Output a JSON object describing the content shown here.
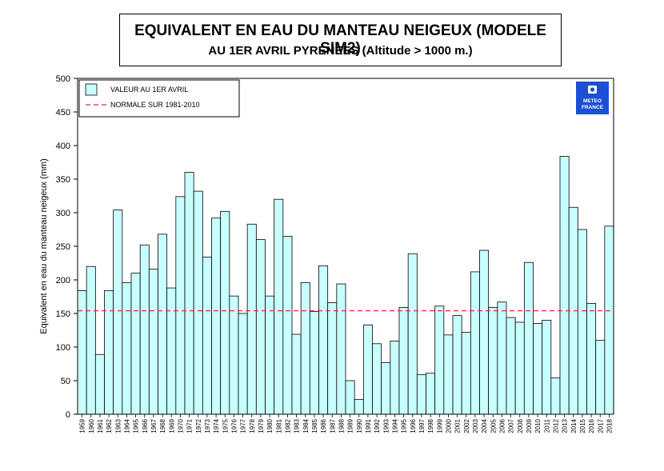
{
  "header": {
    "title": "EQUIVALENT EN EAU DU MANTEAU NEIGEUX (MODELE SIM2)",
    "subtitle": "AU 1ER AVRIL PYRENEES  (Altitude > 1000 m.)"
  },
  "logo": {
    "line1": "METEO",
    "line2": "FRANCE",
    "icon": "meteo-france-logo",
    "color": "#1a4fd6"
  },
  "colors": {
    "bar_fill": "#c8ffff",
    "bar_stroke": "#000000",
    "normal_line": "#e03030"
  },
  "chart_data": {
    "type": "bar",
    "title": "EQUIVALENT EN EAU DU MANTEAU NEIGEUX (MODELE SIM2)",
    "ylabel": "Equivalent en eau du manteau neigeux (mm)",
    "xlabel": "",
    "ylim": [
      0,
      500
    ],
    "yticks": [
      0,
      50,
      100,
      150,
      200,
      250,
      300,
      350,
      400,
      450,
      500
    ],
    "grid": false,
    "legend_position": "top-left",
    "categories": [
      "1959",
      "1960",
      "1961",
      "1962",
      "1963",
      "1964",
      "1965",
      "1966",
      "1967",
      "1968",
      "1969",
      "1970",
      "1971",
      "1972",
      "1973",
      "1974",
      "1975",
      "1976",
      "1977",
      "1978",
      "1979",
      "1980",
      "1981",
      "1982",
      "1983",
      "1984",
      "1985",
      "1986",
      "1987",
      "1988",
      "1989",
      "1990",
      "1991",
      "1992",
      "1993",
      "1994",
      "1995",
      "1996",
      "1997",
      "1998",
      "1999",
      "2000",
      "2001",
      "2002",
      "2003",
      "2004",
      "2005",
      "2006",
      "2007",
      "2008",
      "2009",
      "2010",
      "2011",
      "2012",
      "2013",
      "2014",
      "2015",
      "2016",
      "2017",
      "2018"
    ],
    "series": [
      {
        "name": "VALEUR AU 1ER AVRIL",
        "values": [
          184,
          220,
          89,
          184,
          304,
          196,
          210,
          252,
          216,
          268,
          188,
          324,
          360,
          332,
          234,
          292,
          302,
          176,
          150,
          283,
          260,
          176,
          320,
          265,
          119,
          196,
          153,
          221,
          166,
          194,
          50,
          22,
          133,
          105,
          77,
          109,
          159,
          239,
          59,
          61,
          161,
          118,
          147,
          122,
          212,
          244,
          159,
          167,
          144,
          137,
          226,
          135,
          140,
          54,
          384,
          308,
          275,
          165,
          110,
          280
        ]
      },
      {
        "name": "NORMALE SUR 1981-2010",
        "type": "reference-line",
        "value": 154
      }
    ]
  }
}
